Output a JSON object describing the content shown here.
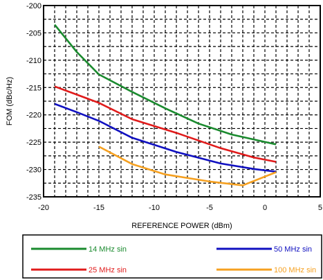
{
  "chart_data": {
    "type": "line",
    "title": "",
    "xlabel": "REFERENCE POWER (dBm)",
    "ylabel": "FOM (dBc/Hz)",
    "xlim": [
      -20,
      5
    ],
    "ylim": [
      -235,
      -200
    ],
    "x_ticks": [
      "-20",
      "-15",
      "-10",
      "-5",
      "0",
      "5"
    ],
    "y_ticks": [
      "-200",
      "-205",
      "-210",
      "-215",
      "-220",
      "-225",
      "-230",
      "-235"
    ],
    "grid": true,
    "legend_position": "bottom",
    "series": [
      {
        "name": "14 MHz sin",
        "color": "#1a8a2e",
        "x": [
          -19,
          -17,
          -15,
          -12,
          -9,
          -6,
          -3,
          1
        ],
        "y": [
          -203.5,
          -208.5,
          -212.6,
          -215.8,
          -218.8,
          -221.6,
          -223.6,
          -225.4
        ]
      },
      {
        "name": "25 MHz sin",
        "color": "#e01b1b",
        "x": [
          -19,
          -17,
          -15,
          -12,
          -8,
          -4,
          -1,
          1
        ],
        "y": [
          -214.8,
          -216.3,
          -217.8,
          -220.8,
          -223.3,
          -226.1,
          -227.8,
          -228.6
        ]
      },
      {
        "name": "50 MHz sin",
        "color": "#1010c0",
        "x": [
          -19,
          -17,
          -15,
          -12,
          -8,
          -4,
          -1,
          1
        ],
        "y": [
          -218.0,
          -219.5,
          -221.1,
          -224.2,
          -226.8,
          -228.9,
          -229.9,
          -230.4
        ]
      },
      {
        "name": "100 MHz sin",
        "color": "#f5a020",
        "x": [
          -15,
          -12,
          -9,
          -5,
          -2,
          1
        ],
        "y": [
          -225.8,
          -229.0,
          -230.9,
          -232.2,
          -232.9,
          -230.5
        ]
      }
    ]
  }
}
